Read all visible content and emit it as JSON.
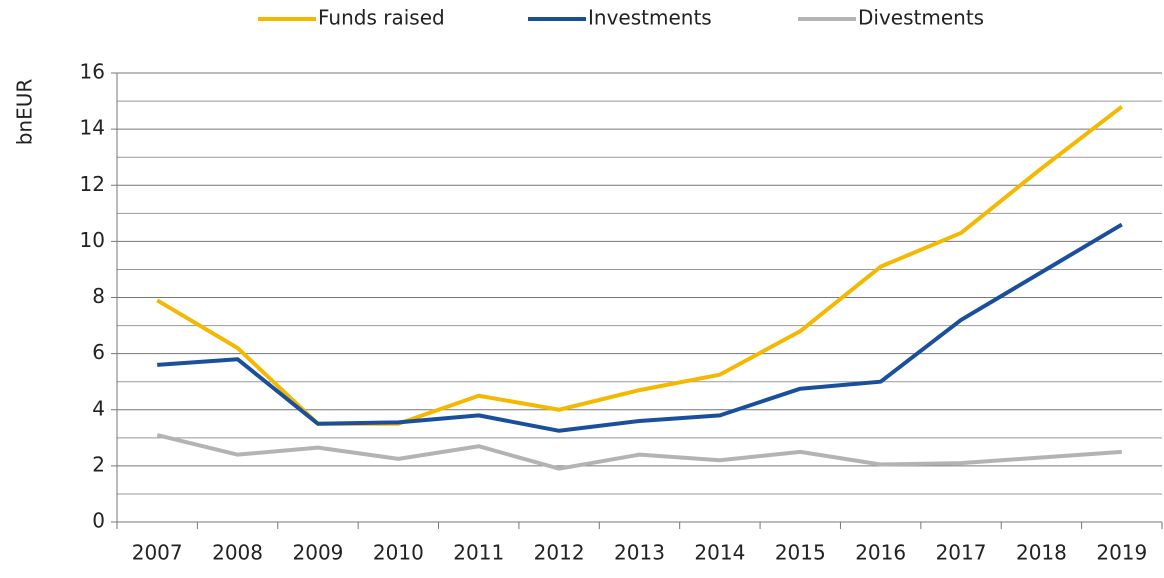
{
  "chart_data": {
    "type": "line",
    "y_label": "bnEUR",
    "categories": [
      "2007",
      "2008",
      "2009",
      "2010",
      "2011",
      "2012",
      "2013",
      "2014",
      "2015",
      "2016",
      "2017",
      "2018",
      "2019"
    ],
    "series": [
      {
        "name": "Funds raised",
        "color": "#f5b800",
        "values": [
          7.9,
          6.2,
          3.5,
          3.5,
          4.5,
          4.0,
          4.7,
          5.25,
          6.8,
          9.1,
          10.3,
          12.6,
          14.8
        ]
      },
      {
        "name": "Investments",
        "color": "#1a4f9c",
        "values": [
          5.6,
          5.8,
          3.5,
          3.55,
          3.8,
          3.25,
          3.6,
          3.8,
          4.75,
          5.0,
          7.2,
          8.9,
          10.6
        ]
      },
      {
        "name": "Divestments",
        "color": "#b3b3b3",
        "values": [
          3.1,
          2.4,
          2.65,
          2.25,
          2.7,
          1.9,
          2.4,
          2.2,
          2.5,
          2.05,
          2.1,
          2.3,
          2.5
        ]
      }
    ],
    "ylim": [
      0,
      16
    ],
    "yticks": [
      0,
      2,
      4,
      6,
      8,
      10,
      12,
      14,
      16
    ],
    "minor_yticks": [
      1,
      3,
      5,
      7,
      9,
      11,
      13,
      15
    ],
    "grid": true,
    "legend": "top"
  }
}
